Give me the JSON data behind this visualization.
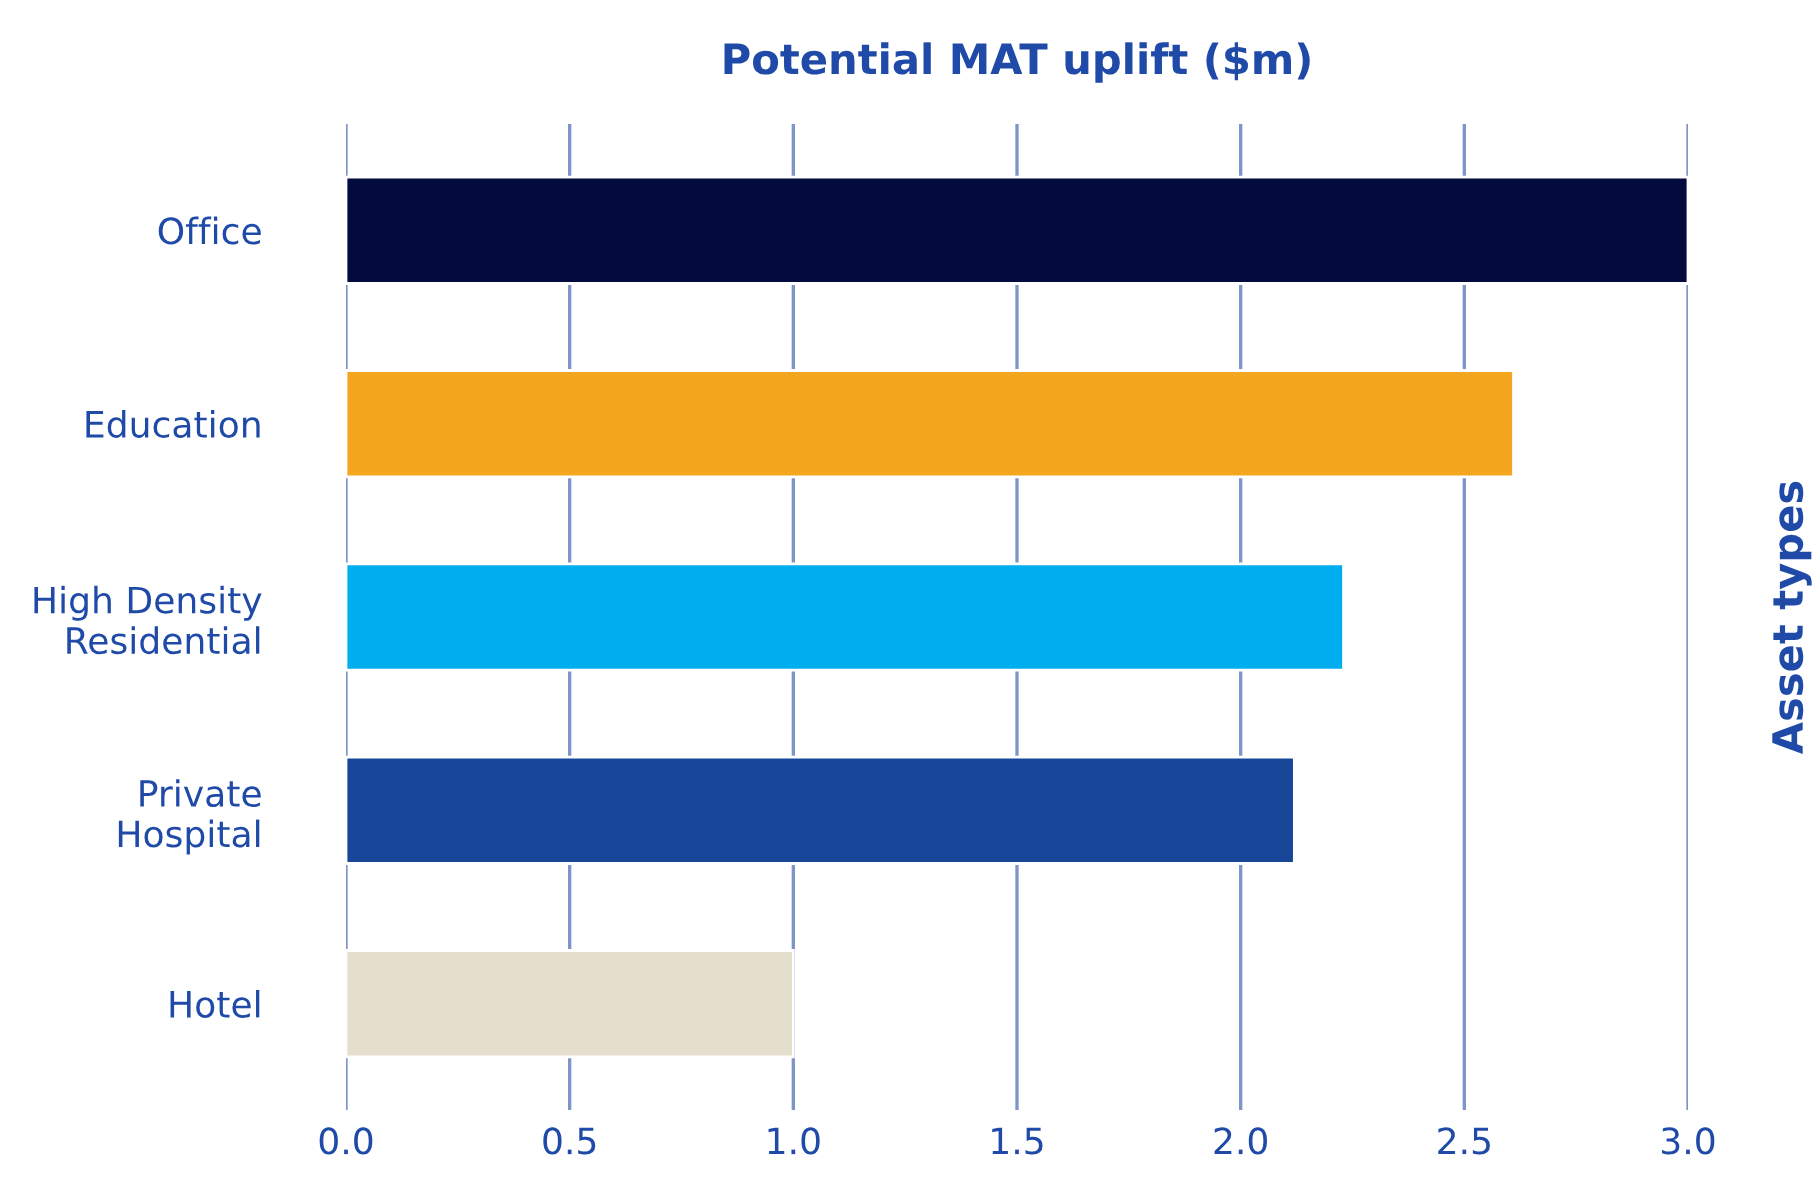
{
  "chart_data": {
    "type": "bar",
    "orientation": "horizontal",
    "title": "Potential MAT uplift ($m)",
    "ylabel": "Asset types",
    "categories": [
      "Office",
      "Education",
      "High Density\nResidential",
      "Private\nHospital",
      "Hotel"
    ],
    "values": [
      3.0,
      2.61,
      2.23,
      2.12,
      1.0
    ],
    "colors": [
      "#030a3d",
      "#f5a61f",
      "#00aeef",
      "#18479a",
      "#e4dfcd"
    ],
    "xlim": [
      0,
      3.0
    ],
    "xticks": [
      {
        "value": 0,
        "label": "0.0"
      },
      {
        "value": 0.5,
        "label": "0.5"
      },
      {
        "value": 1.0,
        "label": "1.0"
      },
      {
        "value": 1.5,
        "label": "1.5"
      },
      {
        "value": 2.0,
        "label": "2.0"
      },
      {
        "value": 2.5,
        "label": "2.5"
      },
      {
        "value": 3.0,
        "label": "3.0"
      }
    ],
    "grid": "x",
    "legend": false
  }
}
